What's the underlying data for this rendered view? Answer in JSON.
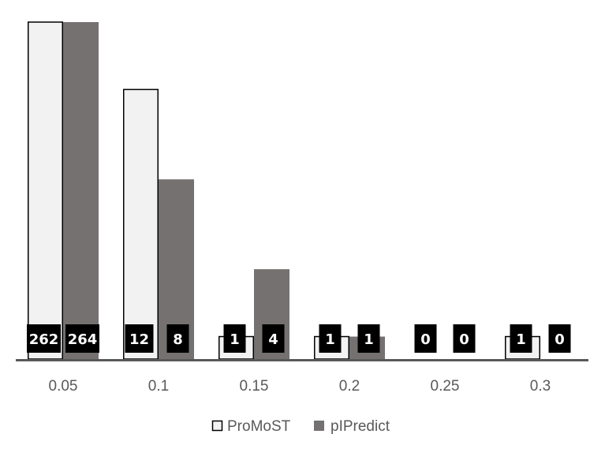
{
  "chart_data": {
    "type": "bar",
    "categories": [
      "0.05",
      "0.1",
      "0.15",
      "0.2",
      "0.25",
      "0.3"
    ],
    "series": [
      {
        "name": "ProMoST",
        "values": [
          262,
          12,
          1,
          1,
          0,
          1
        ],
        "color": "#f2f2f2",
        "stroke": "#000000"
      },
      {
        "name": "pIPredict",
        "values": [
          264,
          8,
          4,
          1,
          0,
          0
        ],
        "color": "#767171",
        "stroke": "#767171"
      }
    ],
    "data_labels": [
      [
        "262",
        "12",
        "1",
        "1",
        "0",
        "1"
      ],
      [
        "264",
        "8",
        "4",
        "1",
        "0",
        "0"
      ]
    ],
    "visual_heights": [
      [
        15,
        12,
        1,
        1,
        0,
        1
      ],
      [
        15,
        8,
        4,
        1,
        0,
        0
      ]
    ],
    "ylim": [
      0,
      15
    ],
    "axis_break": "values of 262 and 264 exceed the visible axis range",
    "title": "",
    "xlabel": "",
    "ylabel": "",
    "legend": {
      "position": "bottom"
    },
    "grid": false,
    "axis_color": "#595959",
    "label_bg": "#000000"
  }
}
